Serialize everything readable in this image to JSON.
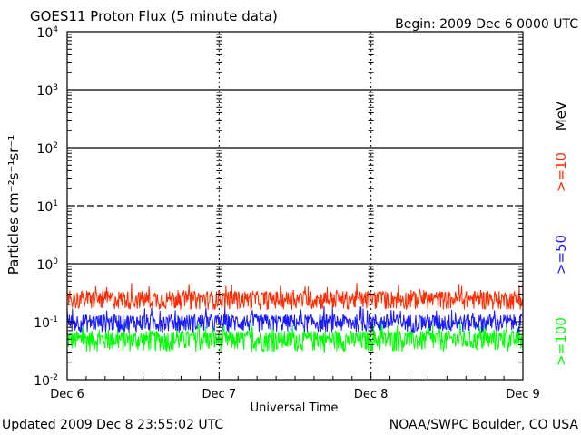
{
  "chart_data": {
    "type": "line",
    "title": "GOES11 Proton Flux (5 minute data)",
    "begin_label": "Begin: 2009 Dec 6 0000 UTC",
    "xlabel": "Universal Time",
    "ylabel": "Particles cm⁻²s⁻¹sr⁻¹",
    "x_categories": [
      "Dec 6",
      "Dec 7",
      "Dec 8",
      "Dec 9"
    ],
    "x_range_days": [
      0,
      3
    ],
    "y_scale": "log",
    "ylim": [
      0.01,
      10000
    ],
    "y_ticks": [
      {
        "exp": "-2",
        "value": 0.01
      },
      {
        "exp": "-1",
        "value": 0.1
      },
      {
        "exp": "0",
        "value": 1
      },
      {
        "exp": "1",
        "value": 10
      },
      {
        "exp": "2",
        "value": 100
      },
      {
        "exp": "3",
        "value": 1000
      },
      {
        "exp": "4",
        "value": 10000
      }
    ],
    "threshold_lines": [
      {
        "value": 10,
        "style": "dashed"
      },
      {
        "value": 1,
        "style": "solid"
      },
      {
        "value": 100,
        "style": "solid"
      },
      {
        "value": 1000,
        "style": "solid"
      }
    ],
    "series": [
      {
        "name": ">=10",
        "color": "#ff2a00",
        "baseline": 0.25,
        "spread": 0.09,
        "min": 0.13,
        "max": 0.55
      },
      {
        "name": ">=50",
        "color": "#1a1aff",
        "baseline": 0.1,
        "spread": 0.035,
        "min": 0.06,
        "max": 0.2
      },
      {
        "name": ">=100",
        "color": "#00ff00",
        "baseline": 0.05,
        "spread": 0.02,
        "min": 0.025,
        "max": 0.1
      }
    ],
    "unit_label": "MeV",
    "updated": "Updated 2009 Dec  8 23:55:02 UTC",
    "source": "NOAA/SWPC Boulder, CO USA"
  }
}
